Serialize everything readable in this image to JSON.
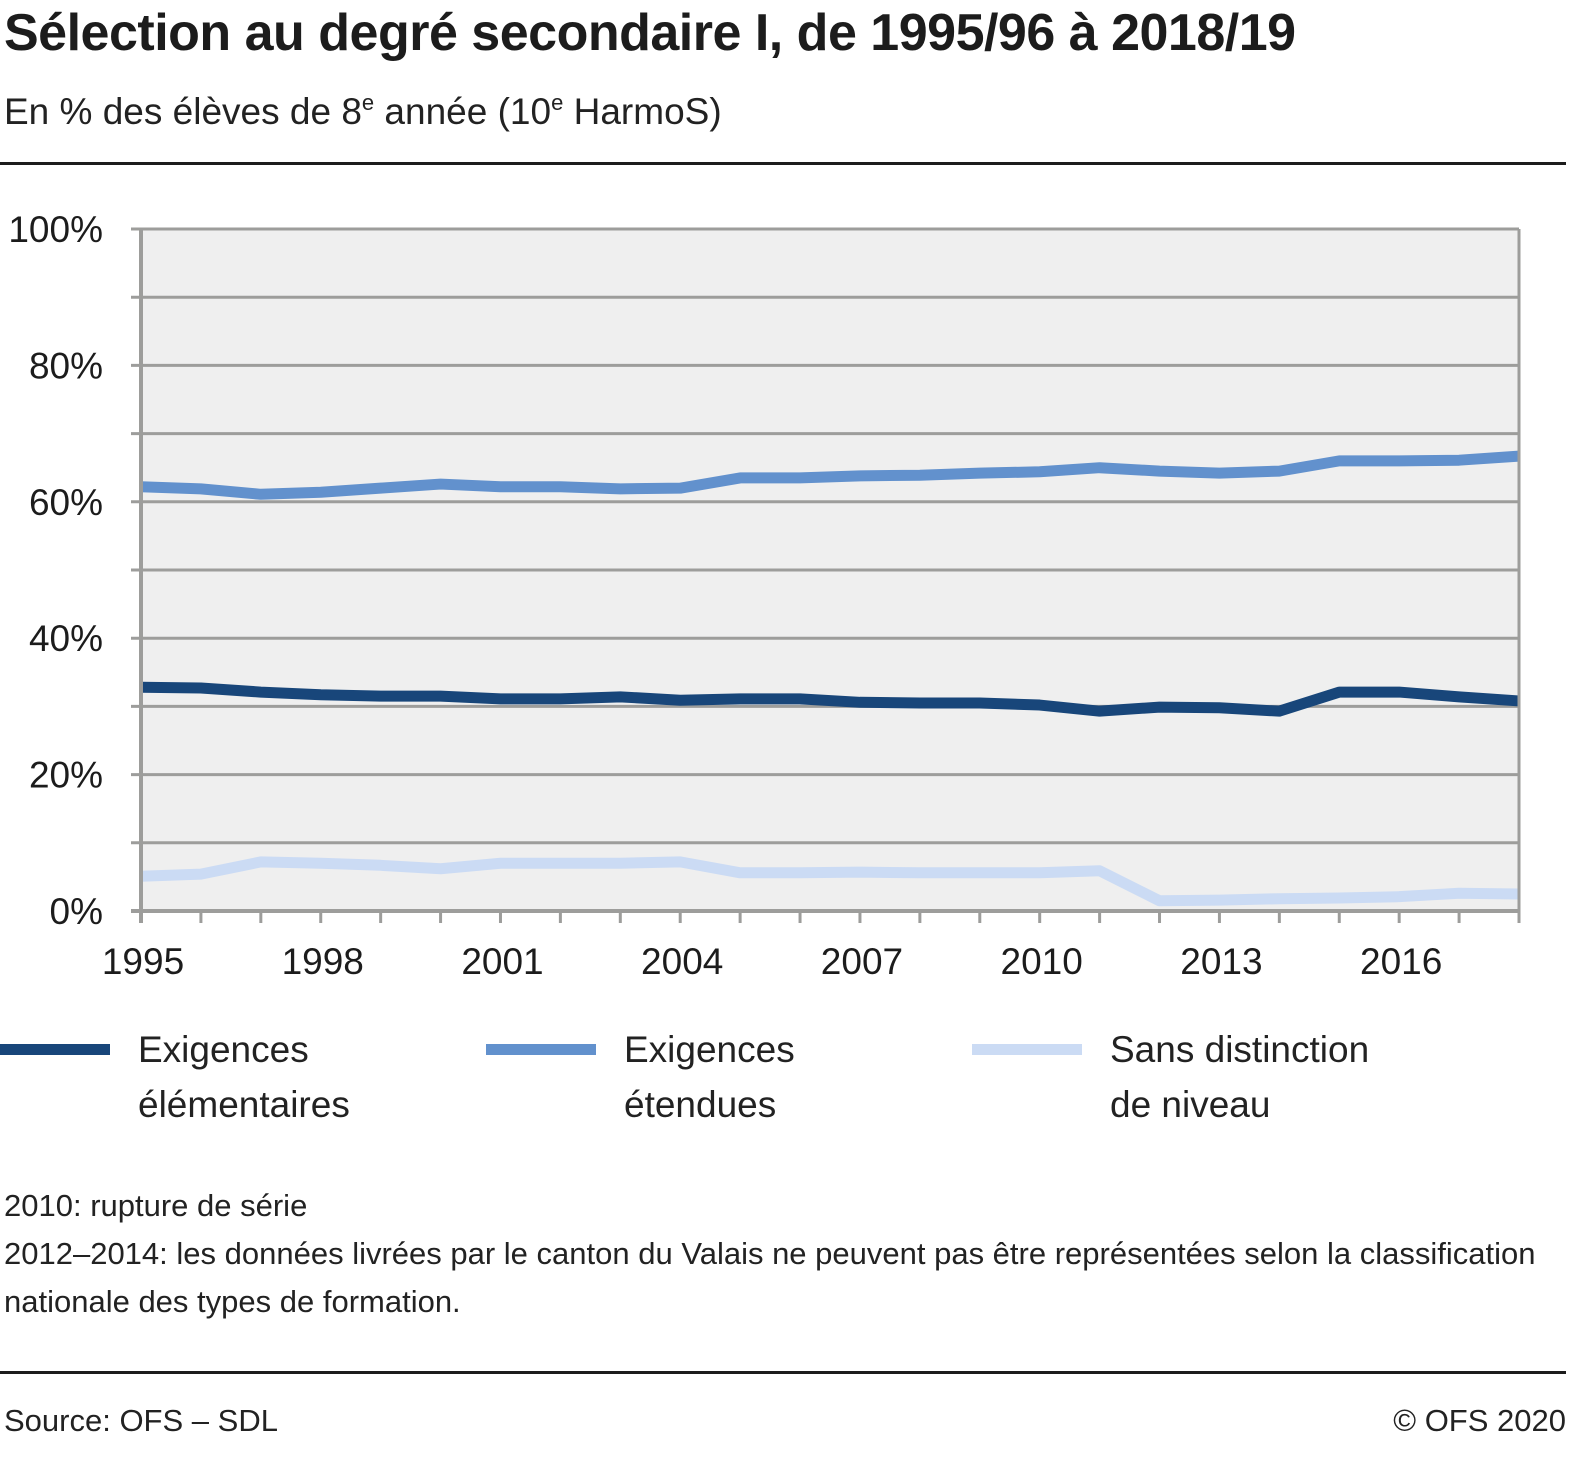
{
  "header": {
    "title": "Sélection au degré secondaire I, de 1995/96 à 2018/19",
    "subtitle_parts": [
      "En % des élèves de 8",
      "e",
      " année (10",
      "e",
      " HarmoS)"
    ]
  },
  "legend": [
    {
      "line1": "Exigences",
      "line2": "élémentaires",
      "color": "#18467a"
    },
    {
      "line1": "Exigences",
      "line2": "étendues",
      "color": "#6291cd"
    },
    {
      "line1": "Sans distinction",
      "line2": "de niveau",
      "color": "#cbdbf4"
    }
  ],
  "footnotes": [
    "2010: rupture de série",
    "2012–2014: les données livrées par le canton du Valais ne peuvent pas être représentées selon la classification nationale des types de formation."
  ],
  "footer": {
    "source": "Source: OFS – SDL",
    "copyright": "© OFS 2020"
  },
  "chart_data": {
    "type": "line",
    "title": "Sélection au degré secondaire I, de 1995/96 à 2018/19",
    "subtitle": "En % des élèves de 8e année (10e HarmoS)",
    "xlabel": "",
    "ylabel": "",
    "x": [
      1995,
      1996,
      1997,
      1998,
      1999,
      2000,
      2001,
      2002,
      2003,
      2004,
      2005,
      2006,
      2007,
      2008,
      2009,
      2010,
      2011,
      2012,
      2013,
      2014,
      2015,
      2016,
      2017,
      2018
    ],
    "x_tick_labels": [
      "1995",
      "1998",
      "2001",
      "2004",
      "2007",
      "2010",
      "2013",
      "2016"
    ],
    "y_tick_labels": [
      "0%",
      "20%",
      "40%",
      "60%",
      "80%",
      "100%"
    ],
    "ylim": [
      0,
      100
    ],
    "xlim": [
      1995,
      2018
    ],
    "grid": true,
    "legend_position": "bottom",
    "plot_background": "#efefef",
    "series": [
      {
        "name": "Exigences élémentaires",
        "color": "#18467a",
        "values": [
          32.8,
          32.7,
          32.1,
          31.7,
          31.5,
          31.5,
          31.1,
          31.1,
          31.4,
          30.9,
          31.1,
          31.1,
          30.6,
          30.5,
          30.5,
          30.2,
          29.3,
          29.9,
          29.8,
          29.3,
          32.1,
          32.1,
          31.4,
          30.8
        ]
      },
      {
        "name": "Exigences étendues",
        "color": "#6291cd",
        "values": [
          62.2,
          61.9,
          61.1,
          61.4,
          62.0,
          62.6,
          62.2,
          62.2,
          61.9,
          62.0,
          63.5,
          63.5,
          63.8,
          63.9,
          64.2,
          64.4,
          65.0,
          64.5,
          64.2,
          64.5,
          66.0,
          66.0,
          66.1,
          66.7
        ]
      },
      {
        "name": "Sans distinction de niveau",
        "color": "#cbdbf4",
        "values": [
          5.1,
          5.4,
          7.2,
          7.0,
          6.7,
          6.2,
          7.0,
          7.0,
          7.0,
          7.2,
          5.6,
          5.6,
          5.7,
          5.6,
          5.6,
          5.6,
          5.9,
          1.5,
          1.6,
          1.8,
          1.9,
          2.1,
          2.6,
          2.5
        ]
      }
    ]
  }
}
